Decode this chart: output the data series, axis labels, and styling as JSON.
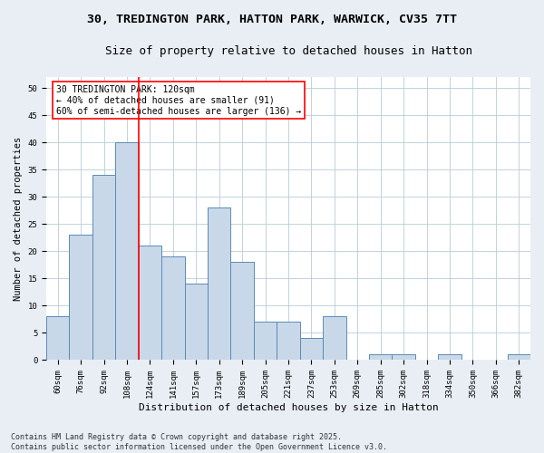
{
  "title1": "30, TREDINGTON PARK, HATTON PARK, WARWICK, CV35 7TT",
  "title2": "Size of property relative to detached houses in Hatton",
  "xlabel": "Distribution of detached houses by size in Hatton",
  "ylabel": "Number of detached properties",
  "categories": [
    "60sqm",
    "76sqm",
    "92sqm",
    "108sqm",
    "124sqm",
    "141sqm",
    "157sqm",
    "173sqm",
    "189sqm",
    "205sqm",
    "221sqm",
    "237sqm",
    "253sqm",
    "269sqm",
    "285sqm",
    "302sqm",
    "318sqm",
    "334sqm",
    "350sqm",
    "366sqm",
    "382sqm"
  ],
  "values": [
    8,
    23,
    34,
    40,
    21,
    19,
    14,
    28,
    18,
    7,
    7,
    4,
    8,
    0,
    1,
    1,
    0,
    1,
    0,
    0,
    1
  ],
  "bar_color": "#c8d8e8",
  "bar_edge_color": "#5a8ab8",
  "vline_x": 3.5,
  "vline_color": "red",
  "annotation_text": "30 TREDINGTON PARK: 120sqm\n← 40% of detached houses are smaller (91)\n60% of semi-detached houses are larger (136) →",
  "annotation_box_color": "white",
  "annotation_box_edge_color": "red",
  "ylim": [
    0,
    52
  ],
  "yticks": [
    0,
    5,
    10,
    15,
    20,
    25,
    30,
    35,
    40,
    45,
    50
  ],
  "footnote": "Contains HM Land Registry data © Crown copyright and database right 2025.\nContains public sector information licensed under the Open Government Licence v3.0.",
  "bg_color": "#e8eef4",
  "plot_bg_color": "white",
  "title_fontsize": 9.5,
  "subtitle_fontsize": 9,
  "tick_fontsize": 6.5,
  "footnote_fontsize": 6,
  "ylabel_fontsize": 7.5,
  "xlabel_fontsize": 8
}
